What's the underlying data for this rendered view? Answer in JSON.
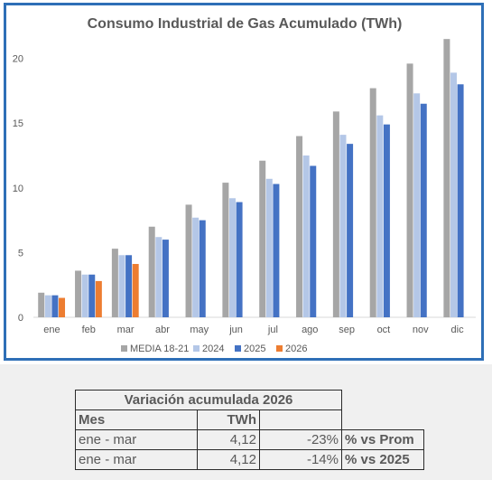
{
  "chart_data": {
    "type": "bar",
    "title": "Consumo Industrial de Gas Acumulado (TWh)",
    "categories": [
      "ene",
      "feb",
      "mar",
      "abr",
      "may",
      "jun",
      "jul",
      "ago",
      "sep",
      "oct",
      "nov",
      "dic"
    ],
    "ylim": [
      0,
      22
    ],
    "yticks": [
      0,
      5,
      10,
      15,
      20
    ],
    "grid": false,
    "legend_position": "bottom",
    "series": [
      {
        "name": "MEDIA 18-21",
        "color": "#a6a6a6",
        "values": [
          1.9,
          3.6,
          5.3,
          7.0,
          8.7,
          10.4,
          12.1,
          14.0,
          15.9,
          17.7,
          19.6,
          21.5
        ]
      },
      {
        "name": "2024",
        "color": "#b4c7e7",
        "values": [
          1.7,
          3.3,
          4.8,
          6.2,
          7.7,
          9.2,
          10.7,
          12.5,
          14.1,
          15.6,
          17.3,
          18.9
        ]
      },
      {
        "name": "2025",
        "color": "#4472c4",
        "values": [
          1.7,
          3.3,
          4.8,
          6.0,
          7.5,
          8.9,
          10.3,
          11.7,
          13.4,
          14.9,
          16.5,
          18.0
        ]
      },
      {
        "name": "2026",
        "color": "#ed7d31",
        "values": [
          1.5,
          2.8,
          4.12,
          null,
          null,
          null,
          null,
          null,
          null,
          null,
          null,
          null
        ]
      }
    ]
  },
  "table": {
    "title": "Variación acumulada 2026",
    "col_mes": "Mes",
    "col_twh": "TWh",
    "rows": [
      {
        "mes": "ene - mar",
        "twh": "4,12",
        "pct": "-23%",
        "label": "% vs Prom"
      },
      {
        "mes": "ene - mar",
        "twh": "4,12",
        "pct": "-14%",
        "label": "% vs 2025"
      }
    ]
  }
}
